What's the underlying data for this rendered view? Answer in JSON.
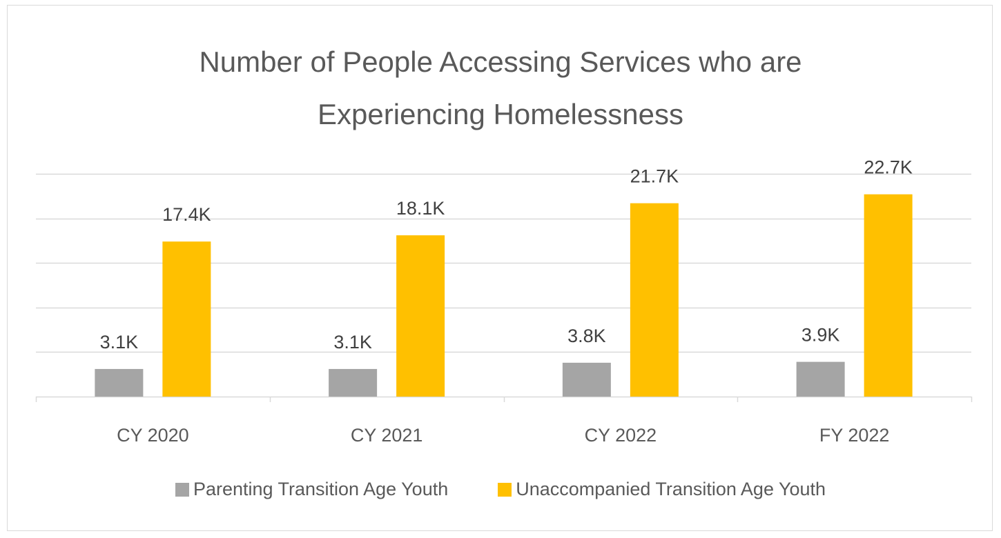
{
  "chart_data": {
    "type": "bar",
    "title_lines": [
      "Number of People Accessing Services who are",
      "Experiencing Homelessness"
    ],
    "categories": [
      "CY 2020",
      "CY 2021",
      "CY 2022",
      "FY 2022"
    ],
    "series": [
      {
        "name": "Parenting Transition Age Youth",
        "color": "#a5a5a5",
        "values": [
          3.1,
          3.1,
          3.8,
          3.9
        ],
        "labels": [
          "3.1K",
          "3.1K",
          "3.8K",
          "3.9K"
        ]
      },
      {
        "name": "Unaccompanied Transition Age Youth",
        "color": "#ffc000",
        "values": [
          17.4,
          18.1,
          21.7,
          22.7
        ],
        "labels": [
          "17.4K",
          "18.1K",
          "21.7K",
          "22.7K"
        ]
      }
    ],
    "ylim": [
      0,
      25
    ],
    "ytick_step": 5,
    "y_axis_labels_shown": false,
    "grid": true,
    "legend_position": "bottom",
    "xlabel": "",
    "ylabel": ""
  }
}
